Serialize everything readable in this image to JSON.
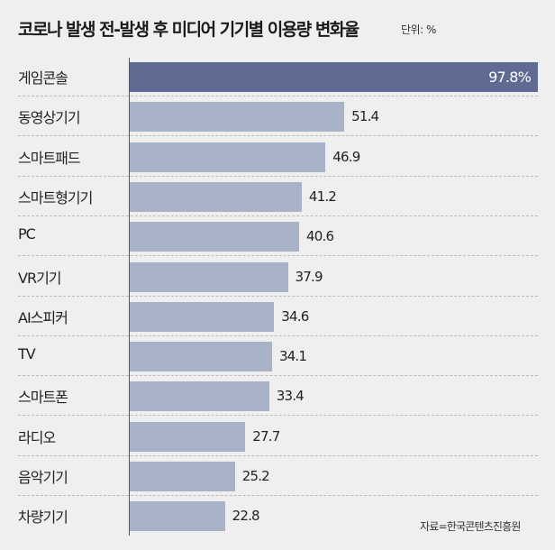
{
  "chart_data": {
    "type": "bar",
    "orientation": "horizontal",
    "title": "코로나 발생 전-발생 후 미디어 기기별 이용량 변화율",
    "unit_label": "단위: %",
    "categories": [
      "게임콘솔",
      "동영상기기",
      "스마트패드",
      "스마트형기기",
      "PC",
      "VR기기",
      "AI스피커",
      "TV",
      "스마트폰",
      "라디오",
      "음악기기",
      "차량기기"
    ],
    "values": [
      97.8,
      51.4,
      46.9,
      41.2,
      40.6,
      37.9,
      34.6,
      34.1,
      33.4,
      27.7,
      25.2,
      22.8
    ],
    "value_labels": [
      "97.8%",
      "51.4",
      "46.9",
      "41.2",
      "40.6",
      "37.9",
      "34.6",
      "34.1",
      "33.4",
      "27.7",
      "25.2",
      "22.8"
    ],
    "highlight_index": 0,
    "xlim": [
      0,
      97.8
    ],
    "source": "자료=한국콘텐츠진흥원",
    "colors": {
      "highlight": "#5f6b93",
      "default": "#a9b3c8"
    }
  }
}
